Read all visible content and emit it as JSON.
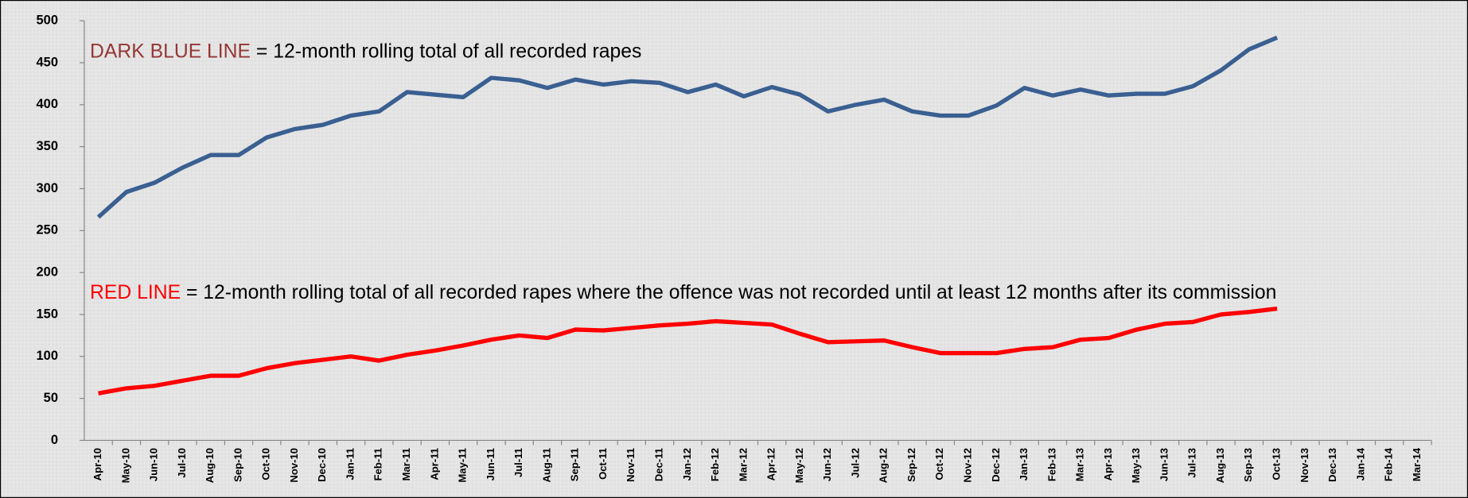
{
  "chart_data": {
    "type": "line",
    "categories": [
      "Apr-10",
      "May-10",
      "Jun-10",
      "Jul-10",
      "Aug-10",
      "Sep-10",
      "Oct-10",
      "Nov-10",
      "Dec-10",
      "Jan-11",
      "Feb-11",
      "Mar-11",
      "Apr-11",
      "May-11",
      "Jun-11",
      "Jul-11",
      "Aug-11",
      "Sep-11",
      "Oct-11",
      "Nov-11",
      "Dec-11",
      "Jan-12",
      "Feb-12",
      "Mar-12",
      "Apr-12",
      "May-12",
      "Jun-12",
      "Jul-12",
      "Aug-12",
      "Sep-12",
      "Oct-12",
      "Nov-12",
      "Dec-12",
      "Jan-13",
      "Feb-13",
      "Mar-13",
      "Apr-13",
      "May-13",
      "Jun-13",
      "Jul-13",
      "Aug-13",
      "Sep-13",
      "Oct-13",
      "Nov-13",
      "Dec-13",
      "Jan-14",
      "Feb-14",
      "Mar-14"
    ],
    "series": [
      {
        "name": "DARK BLUE LINE",
        "color": "#3a5f91",
        "values": [
          266,
          296,
          307,
          325,
          340,
          340,
          361,
          371,
          376,
          387,
          392,
          415,
          412,
          409,
          432,
          429,
          420,
          430,
          424,
          428,
          426,
          415,
          424,
          410,
          421,
          412,
          392,
          400,
          406,
          392,
          387,
          387,
          399,
          420,
          411,
          418,
          411,
          413,
          413,
          422,
          441,
          466,
          480,
          null,
          null,
          null,
          null,
          null
        ]
      },
      {
        "name": "RED LINE",
        "color": "#ff0000",
        "values": [
          56,
          62,
          65,
          71,
          77,
          77,
          86,
          92,
          96,
          100,
          95,
          102,
          107,
          113,
          120,
          125,
          122,
          132,
          131,
          134,
          137,
          139,
          142,
          140,
          138,
          127,
          117,
          118,
          119,
          111,
          104,
          104,
          104,
          109,
          111,
          120,
          122,
          132,
          139,
          141,
          150,
          153,
          157,
          null,
          null,
          null,
          null,
          null
        ]
      }
    ],
    "annotations": [
      {
        "label": "DARK BLUE LINE",
        "color": "#953735",
        "text": "= 12-month rolling total of all recorded rapes"
      },
      {
        "label": "RED LINE",
        "color": "#ff0000",
        "text": "= 12-month rolling total of all recorded rapes where the offence was not recorded until at least 12 months after its commission"
      }
    ],
    "ylim": [
      0,
      500
    ],
    "yticks": [
      0,
      50,
      100,
      150,
      200,
      250,
      300,
      350,
      400,
      450,
      500
    ],
    "grid": false
  }
}
